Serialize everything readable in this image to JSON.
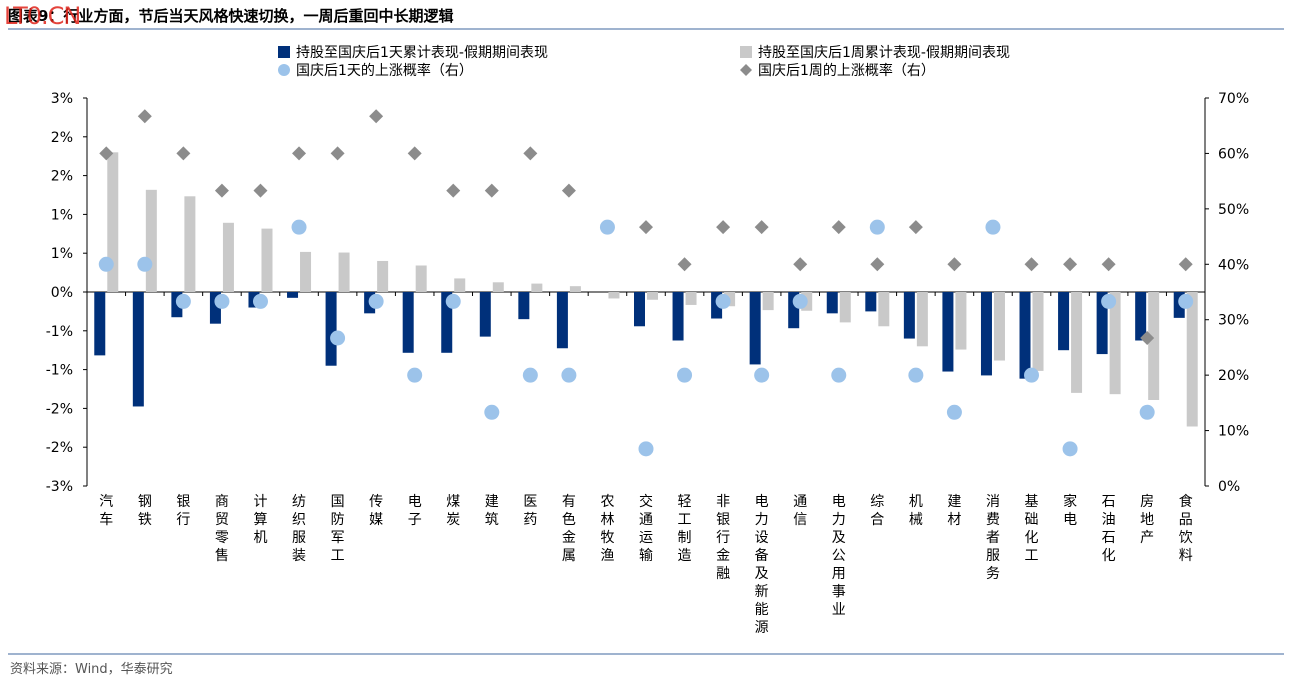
{
  "header": {
    "title": "图表9：行业方面，节后当天风格快速切换，一周后重回中长期逻辑",
    "watermark": "LT0.CN"
  },
  "footer": {
    "source": "资料来源：Wind，华泰研究"
  },
  "colors": {
    "series1": "#00307a",
    "series2": "#c9c9c9",
    "series3": "#9cc3ea",
    "series4": "#8c8c8c",
    "rule": "#9fb3cf"
  },
  "chart_data": {
    "type": "bar",
    "categories": [
      "汽车",
      "钢铁",
      "银行",
      "商贸零售",
      "计算机",
      "纺织服装",
      "国防军工",
      "传媒",
      "电子",
      "煤炭",
      "建筑",
      "医药",
      "有色金属",
      "农林牧渔",
      "交通运输",
      "轻工制造",
      "非银行金融",
      "电力设备及新能源",
      "通信",
      "电力及公用事业",
      "综合",
      "机械",
      "建材",
      "消费者服务",
      "基础化工",
      "家电",
      "石油石化",
      "房地产",
      "食品饮料"
    ],
    "left_axis": {
      "ylim": [
        -0.03,
        0.03
      ],
      "ticks": [
        "3%",
        "2%",
        "2%",
        "1%",
        "1%",
        "0%",
        "-1%",
        "-1%",
        "-2%",
        "-2%",
        "-3%"
      ]
    },
    "right_axis": {
      "ylim": [
        0,
        0.7
      ],
      "ticks": [
        "70%",
        "60%",
        "50%",
        "40%",
        "30%",
        "20%",
        "10%",
        "0%"
      ]
    },
    "legend_position": "top",
    "series": [
      {
        "name": "持股至国庆后1天累计表现-假期期间表现",
        "axis": "left",
        "kind": "bar",
        "values": [
          -0.0098,
          -0.0177,
          -0.0039,
          -0.0049,
          -0.0024,
          -0.0009,
          -0.0114,
          -0.0033,
          -0.0094,
          -0.0094,
          -0.0069,
          -0.0042,
          -0.0087,
          0.0,
          -0.0053,
          -0.0075,
          -0.0041,
          -0.0112,
          -0.0056,
          -0.0033,
          -0.003,
          -0.0072,
          -0.0123,
          -0.0129,
          -0.0134,
          -0.009,
          -0.0096,
          -0.0075,
          -0.004
        ]
      },
      {
        "name": "持股至国庆后1周累计表现-假期期间表现",
        "axis": "left",
        "kind": "bar",
        "values": [
          0.0216,
          0.0158,
          0.0148,
          0.0107,
          0.0098,
          0.0062,
          0.0061,
          0.0048,
          0.0041,
          0.0021,
          0.0015,
          0.0013,
          0.0009,
          -0.001,
          -0.0012,
          -0.002,
          -0.0022,
          -0.0028,
          -0.0029,
          -0.0047,
          -0.0053,
          -0.0084,
          -0.0089,
          -0.0106,
          -0.0122,
          -0.0156,
          -0.0158,
          -0.0167,
          -0.0208
        ]
      },
      {
        "name": "国庆后1天的上涨概率（右）",
        "axis": "right",
        "kind": "point",
        "values": [
          0.4,
          0.4,
          0.333,
          0.333,
          0.333,
          0.467,
          0.267,
          0.333,
          0.2,
          0.333,
          0.133,
          0.2,
          0.2,
          0.467,
          0.067,
          0.2,
          0.333,
          0.2,
          0.333,
          0.2,
          0.467,
          0.2,
          0.133,
          0.467,
          0.2,
          0.067,
          0.333,
          0.133,
          0.333
        ]
      },
      {
        "name": "国庆后1周的上涨概率（右）",
        "axis": "right",
        "kind": "diamond",
        "values": [
          0.6,
          0.667,
          0.6,
          0.533,
          0.533,
          0.6,
          0.6,
          0.667,
          0.6,
          0.533,
          0.533,
          0.6,
          0.533,
          0.467,
          0.467,
          0.4,
          0.467,
          0.467,
          0.4,
          0.467,
          0.4,
          0.467,
          0.4,
          0.467,
          0.4,
          0.4,
          0.4,
          0.267,
          0.4
        ]
      }
    ]
  }
}
